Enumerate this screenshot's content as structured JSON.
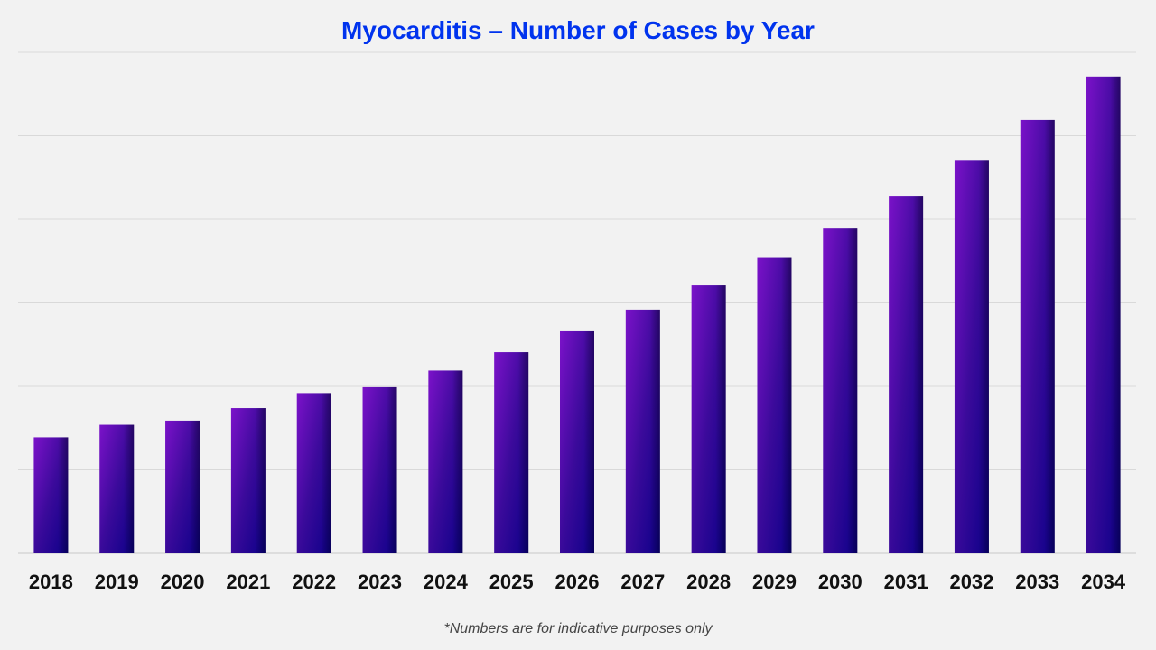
{
  "chart_data": {
    "type": "bar",
    "title": "Myocarditis – Number of Cases by Year",
    "xlabel": "",
    "ylabel": "",
    "categories": [
      "2018",
      "2019",
      "2020",
      "2021",
      "2022",
      "2023",
      "2024",
      "2025",
      "2026",
      "2027",
      "2028",
      "2029",
      "2030",
      "2031",
      "2032",
      "2033",
      "2034"
    ],
    "values": [
      1.39,
      1.54,
      1.59,
      1.74,
      1.92,
      1.99,
      2.19,
      2.41,
      2.66,
      2.92,
      3.21,
      3.54,
      3.89,
      4.28,
      4.71,
      5.19,
      5.71
    ],
    "ylim": [
      0,
      6
    ],
    "y_tick_labels_shown": false,
    "grid": true,
    "legend": "none",
    "colors": {
      "bar_top": "#7b12c9",
      "bar_bottom": "#0b0088",
      "title": "#0033ee",
      "grid": "#d9d9d9"
    }
  },
  "footnote": "*Numbers are for indicative purposes only"
}
